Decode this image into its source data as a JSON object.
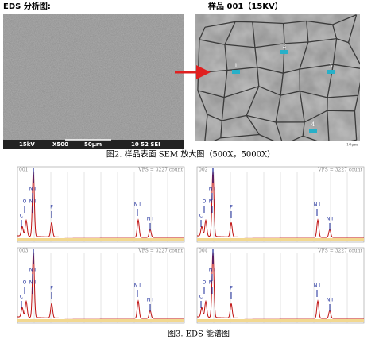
{
  "header": {
    "left": "EDS 分析图:",
    "right": "样品 001（15KV）"
  },
  "sem_left": {
    "labels": [
      "15kV",
      "X500",
      "50μm",
      "10 52 SEI"
    ]
  },
  "sem_right": {
    "markers": [
      "1",
      "2",
      "3",
      "4"
    ],
    "scale": "10μm"
  },
  "figure2_caption": "图2. 样品表面 SEM 放大图（500X，5000X）",
  "spectra": [
    {
      "id": "001",
      "scale": "VFS = 3227 count",
      "peaks": [
        "N I",
        "O",
        "N I",
        "C",
        "P",
        "N I",
        "N I"
      ]
    },
    {
      "id": "002",
      "scale": "VFS = 3227 count",
      "peaks": [
        "N I",
        "O",
        "N I",
        "C",
        "P",
        "N I",
        "N I"
      ]
    },
    {
      "id": "003",
      "scale": "VFS = 3227 count",
      "peaks": [
        "N I",
        "O",
        "N I",
        "C",
        "P",
        "N I",
        "N I"
      ]
    },
    {
      "id": "004",
      "scale": "VFS = 3227 count",
      "peaks": [
        "N I",
        "O",
        "N I",
        "C",
        "P",
        "N I",
        "N I"
      ]
    }
  ],
  "figure3_caption": "图3. EDS 能谱图"
}
